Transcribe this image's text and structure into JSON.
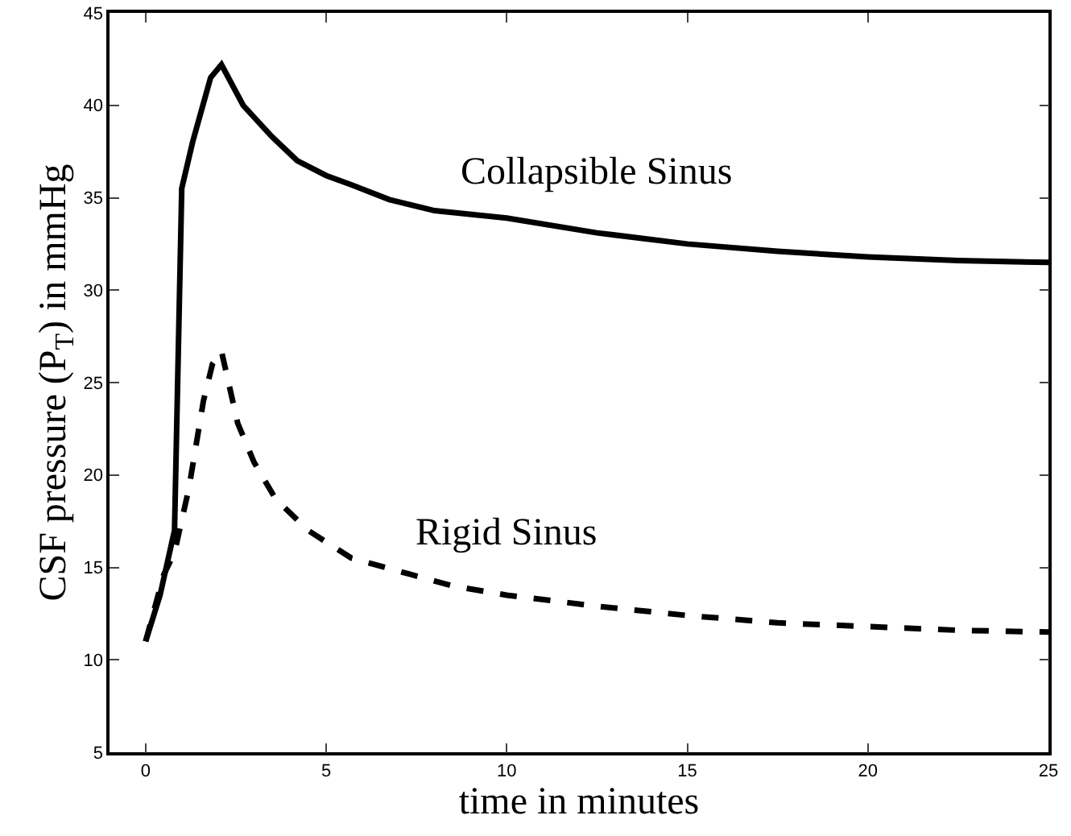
{
  "chart_data": {
    "type": "line",
    "xlabel": "time in minutes",
    "ylabel": "CSF pressure (P$_{T}$) in mmHg",
    "xlim": [
      -1,
      25
    ],
    "xticks": [
      0,
      5,
      10,
      15,
      20,
      25
    ],
    "ylim": [
      5,
      45
    ],
    "yticks": [
      5,
      10,
      15,
      20,
      25,
      30,
      35,
      40,
      45
    ],
    "grid": false,
    "legend": false,
    "marker": "none",
    "series": [
      {
        "name": "Collapsible Sinus",
        "color": "#000000",
        "line_style": "solid",
        "x": [
          0,
          0.4,
          0.8,
          1.0,
          1.3,
          1.8,
          2.1,
          2.7,
          3.5,
          4.2,
          5.0,
          5.7,
          6.75,
          8,
          10,
          12.5,
          15,
          17.5,
          20,
          22.5,
          25
        ],
        "values": [
          11,
          13.5,
          17,
          35.5,
          38,
          41.5,
          42.2,
          40,
          38.3,
          37,
          36.2,
          35.7,
          34.9,
          34.3,
          33.9,
          33.1,
          32.5,
          32.1,
          31.8,
          31.6,
          31.5
        ]
      },
      {
        "name": "Rigid Sinus",
        "color": "#000000",
        "line_style": "dashed",
        "x": [
          0,
          0.5,
          0.8,
          1.2,
          1.6,
          1.85,
          2.1,
          2.55,
          3.0,
          3.6,
          4.5,
          5.7,
          7.0,
          8.5,
          10,
          12.5,
          15,
          17.5,
          20,
          22.5,
          25
        ],
        "values": [
          11,
          14.6,
          15.8,
          19.3,
          24,
          26,
          26.7,
          22.8,
          20.7,
          18.7,
          17,
          15.5,
          14.8,
          14,
          13.5,
          12.9,
          12.4,
          12,
          11.8,
          11.6,
          11.5
        ]
      }
    ]
  }
}
